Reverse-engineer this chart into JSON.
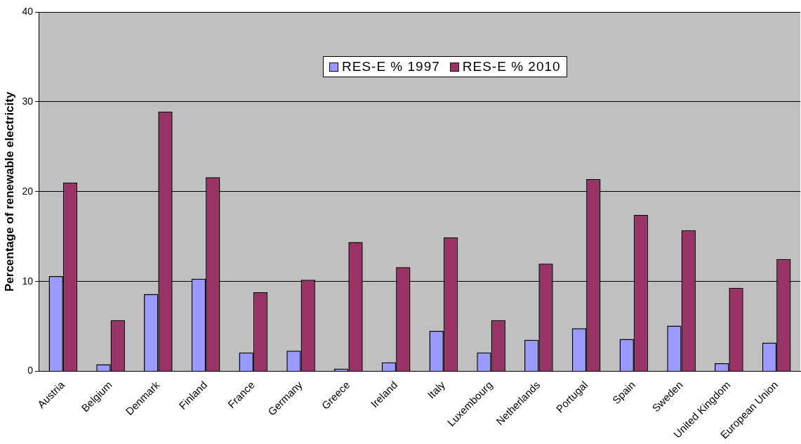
{
  "chart_data": {
    "type": "bar",
    "ylabel": "Percentage of renewable electricity",
    "categories": [
      "Austria",
      "Belgium",
      "Denmark",
      "Finland",
      "France",
      "Germany",
      "Greece",
      "Ireland",
      "Italy",
      "Luxembourg",
      "Netherlands",
      "Portugal",
      "Spain",
      "Sweden",
      "United Kingdom",
      "European Union"
    ],
    "series": [
      {
        "name": "RES-E % 1997",
        "color": "#9999ff",
        "values": [
          10.6,
          0.8,
          8.6,
          10.3,
          2.1,
          2.3,
          0.3,
          1.0,
          4.5,
          2.1,
          3.5,
          4.8,
          3.6,
          5.1,
          0.9,
          3.2
        ]
      },
      {
        "name": "RES-E % 2010",
        "color": "#993366",
        "values": [
          21.0,
          5.7,
          28.9,
          21.6,
          8.8,
          10.2,
          14.4,
          11.6,
          14.9,
          5.7,
          12.0,
          21.4,
          17.4,
          15.7,
          9.3,
          12.5
        ]
      }
    ],
    "ylim": [
      0,
      40
    ],
    "yticks": [
      0,
      10,
      20,
      30,
      40
    ],
    "grid": "y",
    "legend": "top"
  }
}
